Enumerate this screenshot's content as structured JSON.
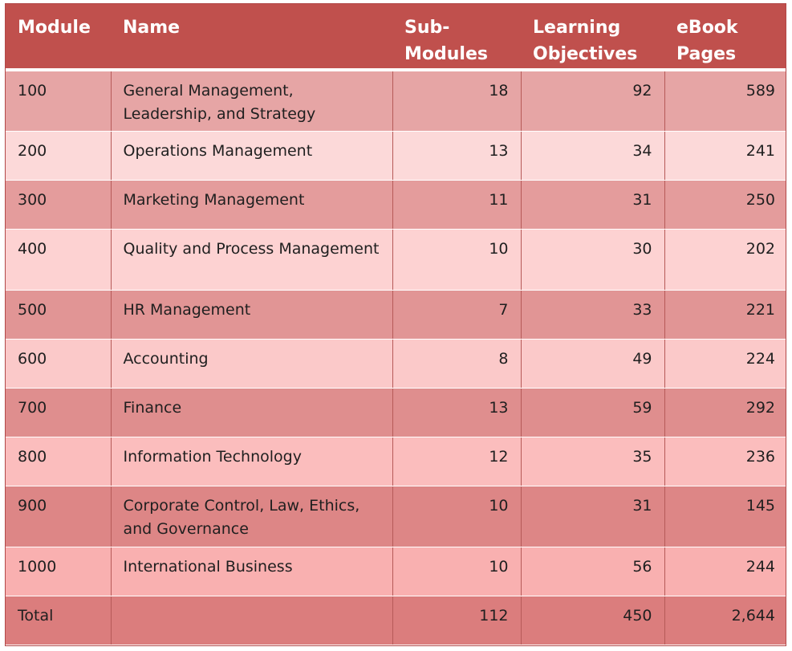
{
  "table": {
    "headers": {
      "module": "Module",
      "name": "Name",
      "sub_modules_1": "Sub-",
      "sub_modules_2": "Modules",
      "learning_objectives_1": "Learning",
      "learning_objectives_2": "Objectives",
      "ebook_pages_1": "eBook",
      "ebook_pages_2": "Pages"
    },
    "rows": [
      {
        "module": "100",
        "name": "General Management, Leadership, and Strategy",
        "sub_modules": "18",
        "learning_objectives": "92",
        "ebook_pages": "589"
      },
      {
        "module": "200",
        "name": "Operations Management",
        "sub_modules": "13",
        "learning_objectives": "34",
        "ebook_pages": "241"
      },
      {
        "module": "300",
        "name": "Marketing Management",
        "sub_modules": "11",
        "learning_objectives": "31",
        "ebook_pages": "250"
      },
      {
        "module": "400",
        "name": "Quality and Process Management",
        "sub_modules": "10",
        "learning_objectives": "30",
        "ebook_pages": "202"
      },
      {
        "module": "500",
        "name": "HR Management",
        "sub_modules": "7",
        "learning_objectives": "33",
        "ebook_pages": "221"
      },
      {
        "module": "600",
        "name": "Accounting",
        "sub_modules": "8",
        "learning_objectives": "49",
        "ebook_pages": "224"
      },
      {
        "module": "700",
        "name": "Finance",
        "sub_modules": "13",
        "learning_objectives": "59",
        "ebook_pages": "292"
      },
      {
        "module": "800",
        "name": "Information Technology",
        "sub_modules": "12",
        "learning_objectives": "35",
        "ebook_pages": "236"
      },
      {
        "module": "900",
        "name": "Corporate Control, Law, Ethics, and Governance",
        "sub_modules": "10",
        "learning_objectives": "31",
        "ebook_pages": "145"
      },
      {
        "module": "1000",
        "name": "International Business",
        "sub_modules": "10",
        "learning_objectives": "56",
        "ebook_pages": "244"
      }
    ],
    "total": {
      "module": "Total",
      "name": "",
      "sub_modules": "112",
      "learning_objectives": "450",
      "ebook_pages": "2,644"
    }
  },
  "colors": {
    "header_bg": "#c0504d",
    "header_text": "#ffffff",
    "border": "#b65a58"
  }
}
